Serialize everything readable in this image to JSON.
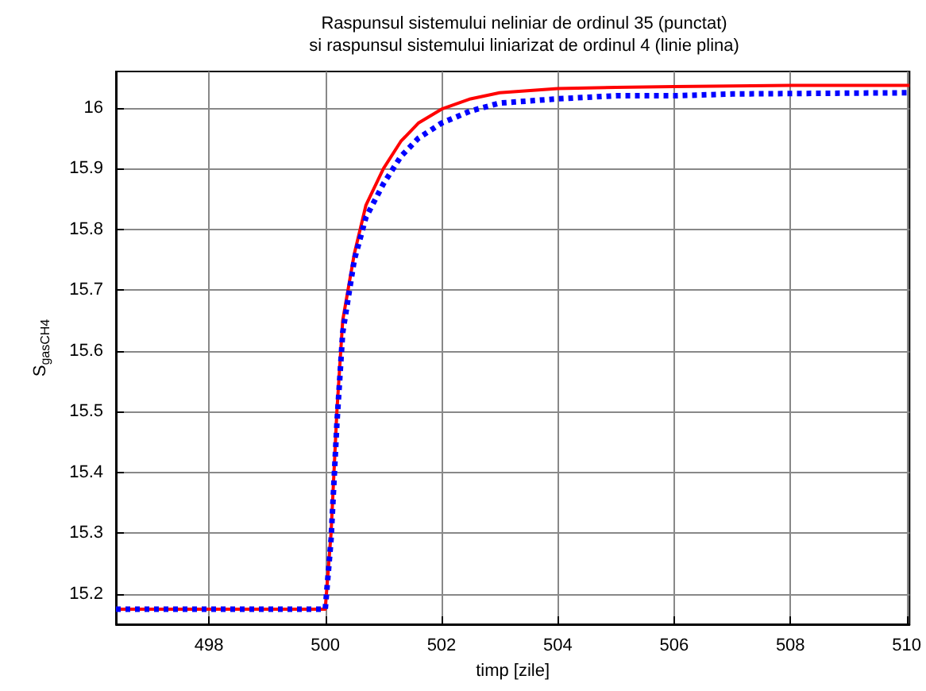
{
  "chart_data": {
    "type": "line",
    "title": "Raspunsul sistemului neliniar de ordinul 35 (punctat)\nsi raspunsul sistemului liniarizat de ordinul 4 (linie plina)",
    "xlabel": "timp [zile]",
    "ylabel": "S$_{gasCH4}$",
    "series": [
      {
        "color": "#ff0000",
        "line_style": "solid",
        "x": [
          496.4,
          500,
          500.1,
          500.2,
          500.3,
          500.5,
          500.7,
          501,
          501.3,
          501.6,
          502,
          502.5,
          503,
          504,
          505,
          506,
          508,
          510.05
        ],
        "values": [
          15.175,
          15.175,
          15.3,
          15.5,
          15.65,
          15.76,
          15.84,
          15.9,
          15.945,
          15.975,
          15.998,
          16.015,
          16.025,
          16.032,
          16.034,
          16.035,
          16.037,
          16.037
        ]
      },
      {
        "color": "#0000ff",
        "line_style": "dotted",
        "x": [
          496.4,
          500,
          500.1,
          500.2,
          500.3,
          500.5,
          500.7,
          501,
          501.3,
          501.6,
          502,
          502.5,
          503,
          504,
          505,
          506,
          507,
          510.05
        ],
        "values": [
          15.175,
          15.175,
          15.29,
          15.48,
          15.63,
          15.75,
          15.82,
          15.875,
          15.92,
          15.95,
          15.975,
          15.995,
          16.008,
          16.015,
          16.02,
          16.02,
          16.023,
          16.025
        ]
      }
    ],
    "xlim": [
      496.4,
      510.05
    ],
    "xticks": [
      498,
      500,
      502,
      504,
      506,
      508,
      510
    ],
    "ylim": [
      15.15,
      16.06
    ],
    "yticks": [
      15.2,
      15.3,
      15.4,
      15.5,
      15.6,
      15.7,
      15.8,
      15.9,
      16
    ],
    "grid": true,
    "marker": "none"
  }
}
